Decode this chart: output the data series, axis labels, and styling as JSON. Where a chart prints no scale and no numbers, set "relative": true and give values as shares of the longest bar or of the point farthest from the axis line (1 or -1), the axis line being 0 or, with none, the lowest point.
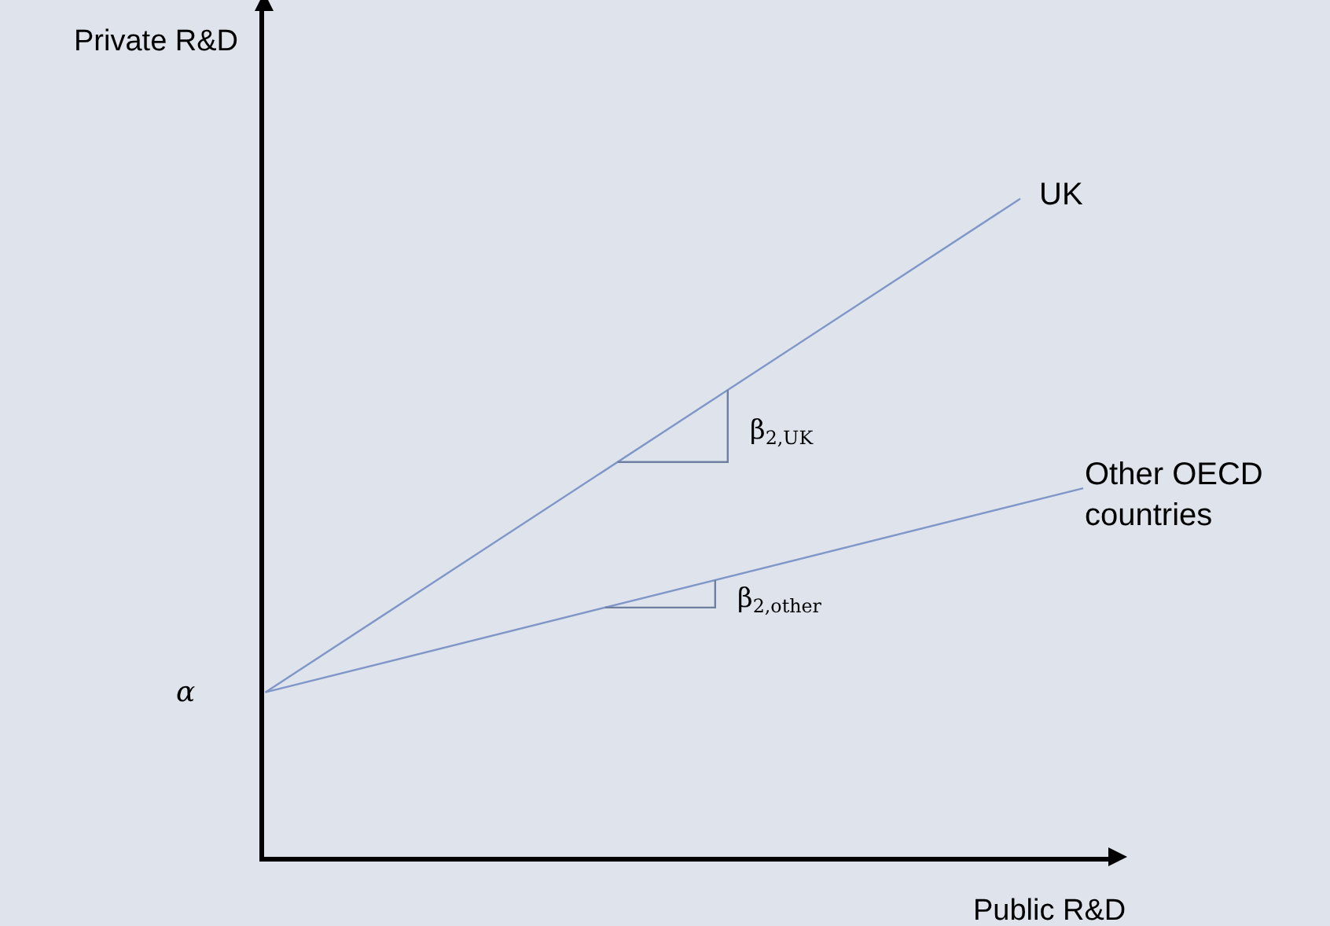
{
  "chart_data": {
    "type": "line",
    "relative": true,
    "xlabel": "Public R&D",
    "ylabel": "Private R&D",
    "categories": [
      null,
      null,
      null,
      null,
      null,
      null,
      null,
      null,
      null,
      null,
      null,
      null,
      null,
      null
    ],
    "series": [
      {
        "name": "UK",
        "color": "#7f96c8",
        "values": [
          0.25,
          null,
          null,
          null,
          null,
          null,
          null,
          null,
          null,
          null,
          null,
          null,
          1.0,
          null
        ]
      },
      {
        "name": "Other OECD countries",
        "color": "#7f96c8",
        "values": [
          0.25,
          null,
          null,
          null,
          null,
          null,
          null,
          null,
          null,
          null,
          null,
          null,
          null,
          0.56
        ]
      }
    ],
    "annotations": [
      "α",
      "β$_{2,UK}$",
      "β$_{2,other}$"
    ],
    "grid": false,
    "legend": false,
    "marker": "none",
    "line_style": "solid"
  }
}
